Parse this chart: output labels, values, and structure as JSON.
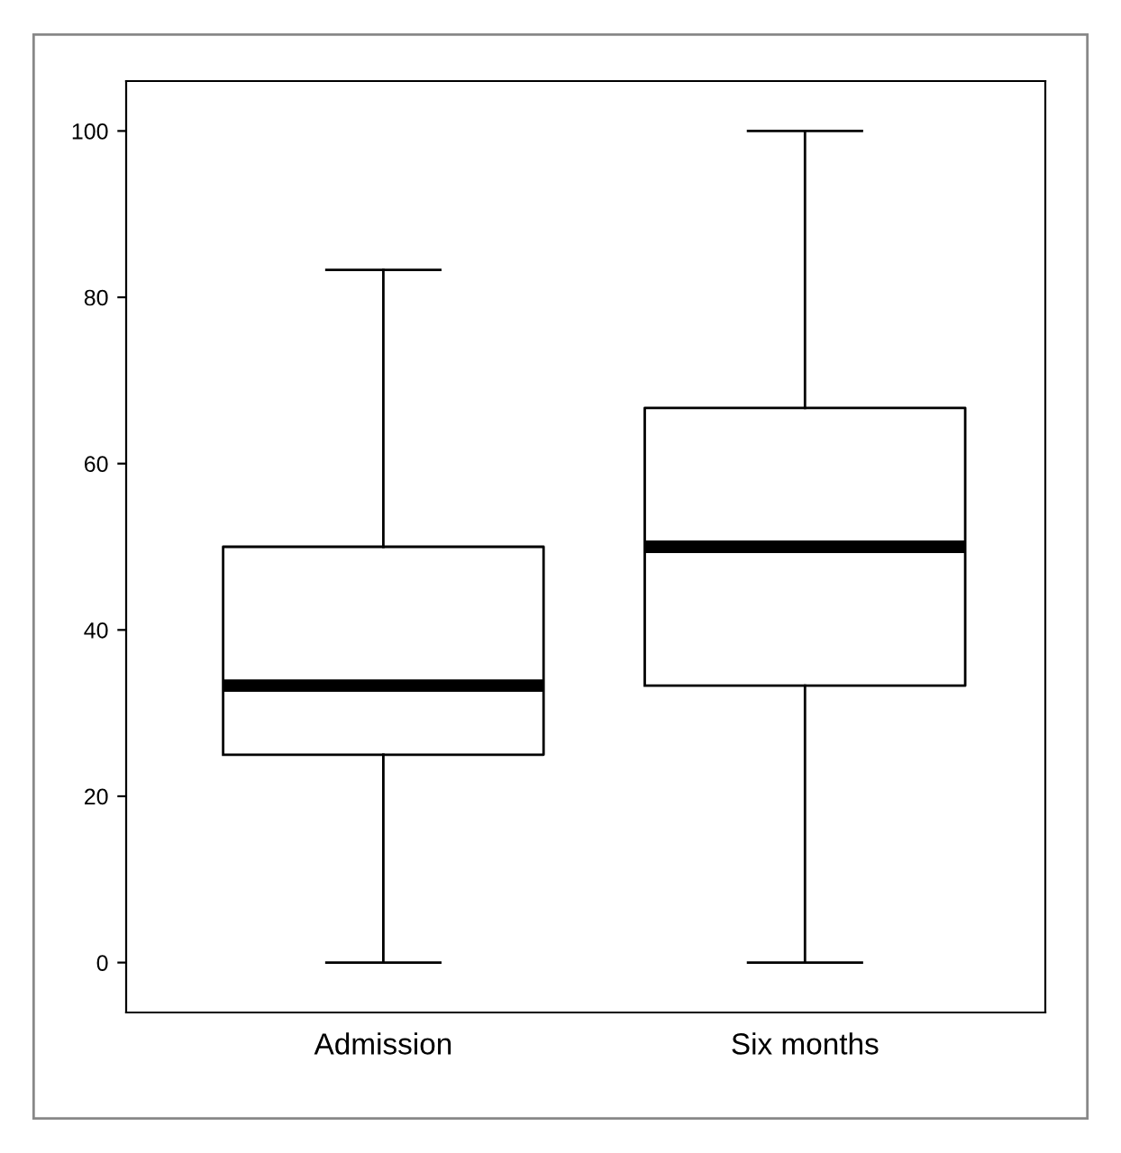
{
  "chart_data": {
    "type": "box",
    "categories": [
      "Admission",
      "Six months"
    ],
    "boxes": [
      {
        "low": 0,
        "q1": 25,
        "median": 33.3,
        "q3": 50,
        "high": 83.3
      },
      {
        "low": 0,
        "q1": 33.3,
        "median": 50,
        "q3": 66.7,
        "high": 100
      }
    ],
    "ylim": [
      -6,
      106
    ],
    "yticks": [
      0,
      20,
      40,
      60,
      80,
      100
    ],
    "grid": false
  }
}
